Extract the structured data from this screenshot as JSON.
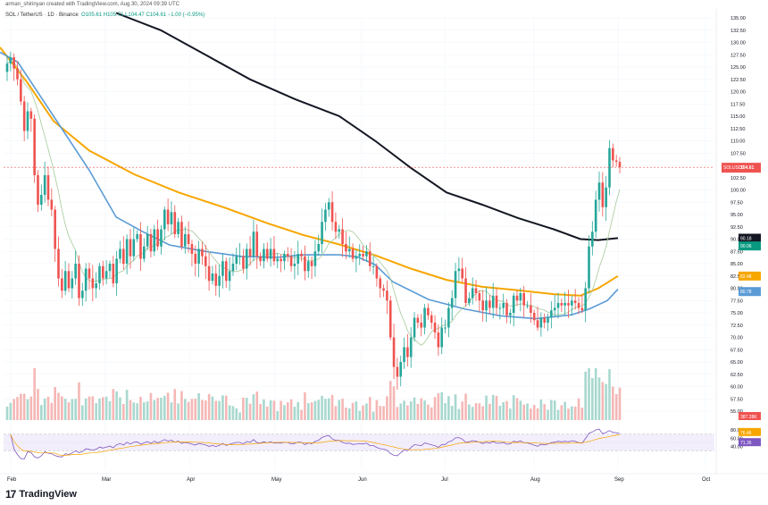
{
  "header": {
    "author_line": "arman_shirinyan created with TradingView.com, Aug 30, 2024 09:39 UTC",
    "symbol": "SOL / TetherUS · 1D · Binance",
    "ohlc": "O105.61  H105.71  L104.47  C104.61  −1.00 (−0.95%)"
  },
  "brand": {
    "logo": "17",
    "name": "TradingView"
  },
  "colors": {
    "up": "#26a69a",
    "down": "#ef5350",
    "ma_black": "#131722",
    "ma_orange": "#f7a600",
    "ma_blue": "#5b9bd5",
    "ma_thin": "#a5c99a",
    "rsi": "#7e57c2"
  },
  "chart_data": {
    "type": "candlestick",
    "x_labels": [
      "Feb",
      "Mar",
      "Apr",
      "May",
      "Jun",
      "Jul",
      "Aug",
      "Sep",
      "Oct"
    ],
    "y_ticks": [
      "135.00",
      "132.50",
      "130.00",
      "127.50",
      "125.00",
      "122.50",
      "120.00",
      "117.50",
      "115.00",
      "112.50",
      "110.00",
      "107.50",
      "105.00",
      "102.50",
      "100.00",
      "97.50",
      "95.00",
      "92.50",
      "90.00",
      "87.50",
      "85.00",
      "82.50",
      "80.00",
      "77.50",
      "75.00",
      "72.50",
      "70.00",
      "67.50",
      "65.00",
      "62.50",
      "60.00",
      "57.50",
      "55.00"
    ],
    "ylim": [
      55,
      135
    ],
    "price_tags": [
      {
        "label": "SOLUSDT",
        "value": "104.61",
        "color": "#ef5350"
      },
      {
        "value": "90.18",
        "color": "#131722"
      },
      {
        "value": "90.06",
        "color": "#089981"
      },
      {
        "value": "82.48",
        "color": "#f7a600"
      },
      {
        "value": "80.78",
        "color": "#5b9bd5"
      }
    ],
    "volume_tag": "387.28K",
    "rsi_axis": [
      "80.00",
      "60.00",
      "40.00"
    ],
    "rsi_tags": [
      {
        "value": "76.46",
        "color": "#f7a600"
      },
      {
        "value": "71.35",
        "color": "#7e57c2"
      }
    ],
    "closes": [
      125.7,
      127,
      124.7,
      122.5,
      118,
      112,
      116,
      114.5,
      103,
      97,
      99,
      103,
      98,
      96,
      88,
      82,
      79.5,
      83.5,
      80,
      82,
      85,
      78,
      79.5,
      84,
      82,
      80,
      81,
      84.5,
      82,
      83.5,
      85,
      81,
      86,
      88,
      85,
      90,
      86.5,
      90,
      91,
      86,
      88.5,
      91,
      87.5,
      92,
      88.5,
      92,
      96,
      93,
      95.5,
      91,
      93.5,
      88.5,
      91,
      89,
      87,
      85,
      88,
      86.5,
      84.5,
      81.5,
      83,
      80.5,
      82.5,
      85.5,
      81.5,
      83.5,
      85,
      86.5,
      86.5,
      84,
      88,
      86.5,
      91.5,
      86.5,
      85.5,
      88,
      86,
      88,
      85.5,
      86,
      85.5,
      87,
      86.5,
      84.5,
      85,
      87,
      86.5,
      83.5,
      85.5,
      84.5,
      87.5,
      89,
      93.5,
      96,
      97.5,
      93.5,
      91.5,
      92,
      89,
      87.5,
      88,
      86,
      86.5,
      87,
      86.5,
      87.5,
      84.5,
      84.5,
      82,
      80,
      79.5,
      77.5,
      70,
      64,
      62,
      65,
      68,
      66,
      70,
      74,
      73,
      72,
      76,
      74.5,
      73,
      71,
      68,
      72,
      72,
      76,
      78,
      83.5,
      84,
      82,
      77,
      78,
      80,
      79,
      77.5,
      75.5,
      77.5,
      76,
      78.5,
      76,
      76,
      77,
      74.5,
      75,
      78.5,
      77.5,
      79,
      76.5,
      76.5,
      75,
      73.5,
      72,
      74,
      73,
      74,
      75.5,
      76,
      77,
      76.5,
      77,
      76.5,
      77.5,
      77,
      76,
      75.5,
      80,
      88.5,
      91.5,
      98,
      101.5,
      96.5,
      100.5,
      108.5,
      106,
      105.7,
      104.6
    ],
    "ma_orange": [
      [
        0,
        129
      ],
      [
        30,
        122
      ],
      [
        60,
        114
      ],
      [
        100,
        108
      ],
      [
        150,
        103.2
      ],
      [
        200,
        99.5
      ],
      [
        250,
        96.5
      ],
      [
        300,
        93.2
      ],
      [
        340,
        90.8
      ],
      [
        380,
        88.9
      ],
      [
        420,
        86.7
      ],
      [
        460,
        84
      ],
      [
        500,
        81.7
      ],
      [
        540,
        80.3
      ],
      [
        580,
        79.6
      ],
      [
        620,
        78.8
      ],
      [
        650,
        78.5
      ],
      [
        670,
        80
      ],
      [
        692,
        82.5
      ]
    ],
    "ma_black": [
      [
        130,
        136
      ],
      [
        180,
        132.5
      ],
      [
        230,
        127.5
      ],
      [
        280,
        122.5
      ],
      [
        330,
        118.5
      ],
      [
        380,
        115
      ],
      [
        420,
        110
      ],
      [
        460,
        104.5
      ],
      [
        500,
        99.5
      ],
      [
        540,
        97
      ],
      [
        580,
        94.3
      ],
      [
        620,
        92
      ],
      [
        650,
        90
      ],
      [
        670,
        89.8
      ],
      [
        692,
        90.2
      ]
    ],
    "ma_blue": [
      [
        0,
        128
      ],
      [
        20,
        126
      ],
      [
        60,
        115
      ],
      [
        100,
        104
      ],
      [
        130,
        94.5
      ],
      [
        160,
        91.5
      ],
      [
        190,
        88.8
      ],
      [
        230,
        87.5
      ],
      [
        270,
        86.5
      ],
      [
        310,
        86.3
      ],
      [
        340,
        86.8
      ],
      [
        380,
        86.8
      ],
      [
        400,
        86.4
      ],
      [
        420,
        84.8
      ],
      [
        440,
        81.3
      ],
      [
        480,
        77.7
      ],
      [
        520,
        75.8
      ],
      [
        560,
        74.4
      ],
      [
        600,
        73.8
      ],
      [
        640,
        74.6
      ],
      [
        660,
        75.8
      ],
      [
        680,
        77.5
      ],
      [
        692,
        79.8
      ]
    ]
  }
}
